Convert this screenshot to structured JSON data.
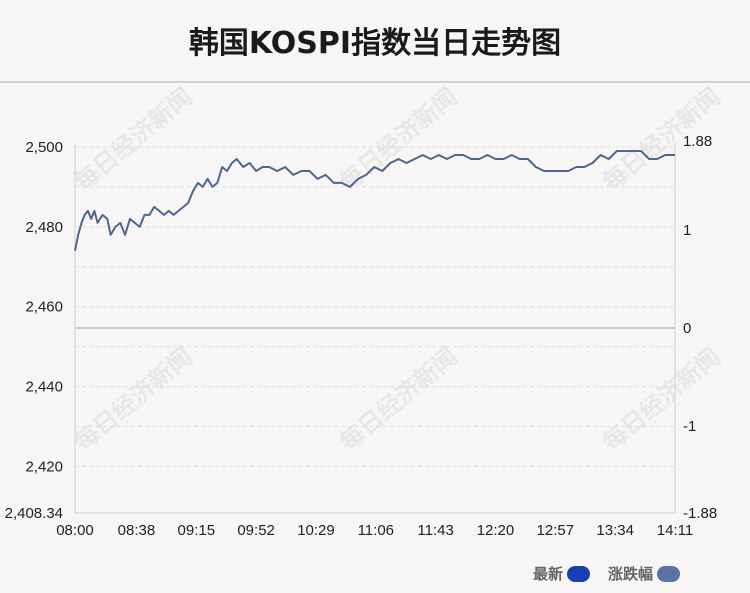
{
  "title": "韩国KOSPI指数当日走势图",
  "watermark": "每日经济新闻",
  "legend": [
    {
      "label": "最新",
      "color": "#1a3fb0"
    },
    {
      "label": "涨跌幅",
      "color": "#5b73a4"
    }
  ],
  "chart_data": {
    "type": "line",
    "line_color": "#4f6690",
    "grid": true,
    "left_axis": {
      "ylim": [
        2408.34,
        2501
      ],
      "ticks": [
        2500,
        2480,
        2460,
        2440,
        2420,
        2408.34
      ],
      "tick_labels": [
        "2,500",
        "2,480",
        "2,460",
        "2,440",
        "2,420",
        "2,408.34"
      ],
      "reference": 2454.67
    },
    "right_axis": {
      "ticks": [
        1.88,
        1,
        0,
        -1,
        -1.88
      ],
      "tick_labels": [
        "1.88",
        "1",
        "0",
        "-1",
        "-1.88"
      ]
    },
    "x_tick_labels": [
      "08:00",
      "08:38",
      "09:15",
      "09:52",
      "10:29",
      "11:06",
      "11:43",
      "12:20",
      "12:57",
      "13:34",
      "14:11"
    ],
    "x_range": [
      "08:00",
      "14:11"
    ],
    "series": [
      {
        "x": [
          "08:00",
          "08:02",
          "08:04",
          "08:06",
          "08:08",
          "08:10",
          "08:12",
          "08:14",
          "08:17",
          "08:20",
          "08:22",
          "08:25",
          "08:28",
          "08:31",
          "08:34",
          "08:37",
          "08:40",
          "08:43",
          "08:46",
          "08:49",
          "08:52",
          "08:55",
          "08:58",
          "09:01",
          "09:04",
          "09:07",
          "09:10",
          "09:13",
          "09:16",
          "09:19",
          "09:22",
          "09:25",
          "09:28",
          "09:31",
          "09:34",
          "09:37",
          "09:40",
          "09:44",
          "09:48",
          "09:52",
          "09:56",
          "10:00",
          "10:05",
          "10:10",
          "10:15",
          "10:20",
          "10:25",
          "10:30",
          "10:35",
          "10:40",
          "10:45",
          "10:50",
          "10:55",
          "11:00",
          "11:05",
          "11:10",
          "11:15",
          "11:20",
          "11:25",
          "11:30",
          "11:35",
          "11:40",
          "11:45",
          "11:50",
          "11:55",
          "12:00",
          "12:05",
          "12:10",
          "12:15",
          "12:20",
          "12:25",
          "12:30",
          "12:35",
          "12:40",
          "12:45",
          "12:50",
          "12:55",
          "13:00",
          "13:05",
          "13:10",
          "13:15",
          "13:20",
          "13:25",
          "13:30",
          "13:35",
          "13:40",
          "13:45",
          "13:50",
          "13:55",
          "14:00",
          "14:05",
          "14:11"
        ],
        "values": [
          2474,
          2478,
          2481,
          2483,
          2484,
          2482,
          2484,
          2481,
          2483,
          2482,
          2478,
          2480,
          2481,
          2478,
          2482,
          2481,
          2480,
          2483,
          2483,
          2485,
          2484,
          2483,
          2484,
          2483,
          2484,
          2485,
          2486,
          2489,
          2491,
          2490,
          2492,
          2490,
          2491,
          2495,
          2494,
          2496,
          2497,
          2495,
          2496,
          2494,
          2495,
          2495,
          2494,
          2495,
          2493,
          2494,
          2494,
          2492,
          2493,
          2491,
          2491,
          2490,
          2492,
          2493,
          2495,
          2494,
          2496,
          2497,
          2496,
          2497,
          2498,
          2497,
          2498,
          2497,
          2498,
          2498,
          2497,
          2497,
          2498,
          2497,
          2497,
          2498,
          2497,
          2497,
          2495,
          2494,
          2494,
          2494,
          2494,
          2495,
          2495,
          2496,
          2498,
          2497,
          2499,
          2499,
          2499,
          2499,
          2497,
          2497,
          2498,
          2498
        ]
      }
    ]
  }
}
